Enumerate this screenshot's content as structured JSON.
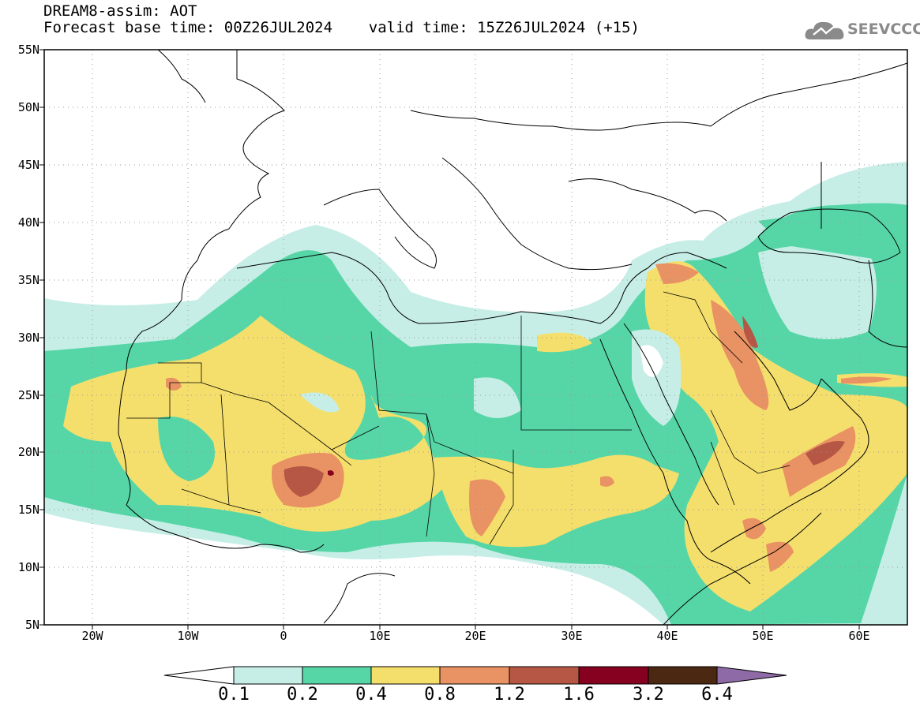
{
  "title": {
    "line1": "DREAM8-assim: AOT",
    "line2": "Forecast base time: 00Z26JUL2024    valid time: 15Z26JUL2024 (+15)"
  },
  "logo": {
    "text": "SEEVCCC",
    "icon": "cloud-icon"
  },
  "map": {
    "projection": "lat-lon",
    "lon_range": [
      "25W",
      "65E"
    ],
    "lat_range": [
      "5N",
      "55N"
    ],
    "lat_labels": [
      "55N",
      "50N",
      "45N",
      "40N",
      "35N",
      "30N",
      "25N",
      "20N",
      "15N",
      "10N",
      "5N"
    ],
    "lon_labels": [
      "20W",
      "10W",
      "0",
      "10E",
      "20E",
      "30E",
      "40E",
      "50E",
      "60E"
    ],
    "grid": "dotted"
  },
  "colorbar": {
    "labels": [
      "0.1",
      "0.2",
      "0.4",
      "0.8",
      "1.2",
      "1.6",
      "3.2",
      "6.4"
    ],
    "colors": [
      "#ffffff",
      "#c6eee6",
      "#56d6a7",
      "#f5df6c",
      "#e99263",
      "#b65644",
      "#860020",
      "#4a2812",
      "#8e6aa6"
    ]
  }
}
